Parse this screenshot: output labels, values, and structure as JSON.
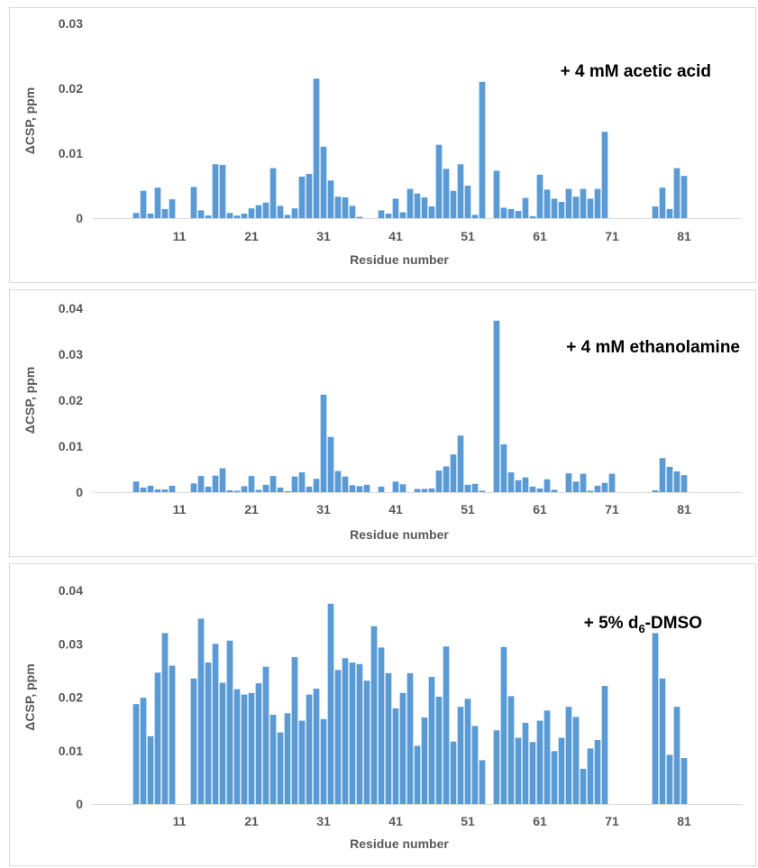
{
  "chart_data": [
    {
      "type": "bar",
      "annotation": "+ 4 mM acetic acid",
      "xlabel": "Residue number",
      "ylabel": "ΔCSP, ppm",
      "ylim": [
        0,
        0.03
      ],
      "yticks": [
        "0",
        "0.01",
        "0.02",
        "0.03"
      ],
      "xlim": [
        -1,
        89
      ],
      "xticks": [
        "11",
        "21",
        "31",
        "41",
        "51",
        "61",
        "71",
        "81"
      ],
      "grid": false,
      "x": [
        5,
        6,
        7,
        8,
        9,
        10,
        11,
        13,
        14,
        15,
        16,
        17,
        18,
        19,
        20,
        21,
        22,
        23,
        24,
        25,
        26,
        27,
        28,
        29,
        30,
        31,
        32,
        33,
        34,
        35,
        36,
        37,
        38,
        39,
        40,
        41,
        42,
        43,
        44,
        45,
        46,
        47,
        48,
        49,
        50,
        51,
        52,
        53,
        55,
        56,
        57,
        58,
        59,
        60,
        61,
        62,
        63,
        64,
        65,
        66,
        67,
        68,
        69,
        70,
        71,
        77,
        78,
        79,
        80,
        81
      ],
      "values": [
        0.0008,
        0.0042,
        0.0007,
        0.0047,
        0.0014,
        0.0029,
        0.0,
        0.0048,
        0.0012,
        0.0004,
        0.0083,
        0.0082,
        0.0008,
        0.0004,
        0.0007,
        0.0015,
        0.002,
        0.0024,
        0.0077,
        0.0019,
        0.0005,
        0.0015,
        0.0064,
        0.0068,
        0.0215,
        0.011,
        0.0058,
        0.0033,
        0.0032,
        0.0019,
        0.0002,
        0.0,
        0.0,
        0.0012,
        0.0007,
        0.003,
        0.0009,
        0.0045,
        0.0038,
        0.0032,
        0.0018,
        0.0113,
        0.0076,
        0.0042,
        0.0083,
        0.005,
        0.0005,
        0.021,
        0.0073,
        0.0016,
        0.0014,
        0.0011,
        0.0031,
        0.0003,
        0.0067,
        0.0044,
        0.003,
        0.0025,
        0.0045,
        0.0033,
        0.0045,
        0.003,
        0.0045,
        0.0133,
        0.0,
        0.0018,
        0.0047,
        0.0014,
        0.0077,
        0.0065
      ]
    },
    {
      "type": "bar",
      "annotation": "+ 4 mM ethanolamine",
      "xlabel": "Residue number",
      "ylabel": "ΔCSP, ppm",
      "ylim": [
        0,
        0.04
      ],
      "yticks": [
        "0",
        "0.01",
        "0.02",
        "0.03",
        "0.04"
      ],
      "xlim": [
        -1,
        89
      ],
      "xticks": [
        "11",
        "21",
        "31",
        "41",
        "51",
        "61",
        "71",
        "81"
      ],
      "grid": false,
      "x": [
        5,
        6,
        7,
        8,
        9,
        10,
        11,
        13,
        14,
        15,
        16,
        17,
        18,
        19,
        20,
        21,
        22,
        23,
        24,
        25,
        26,
        27,
        28,
        29,
        30,
        31,
        32,
        33,
        34,
        35,
        36,
        37,
        38,
        39,
        40,
        41,
        42,
        43,
        44,
        45,
        46,
        47,
        48,
        49,
        50,
        51,
        52,
        53,
        55,
        56,
        57,
        58,
        59,
        60,
        61,
        62,
        63,
        64,
        65,
        66,
        67,
        68,
        69,
        70,
        71,
        77,
        78,
        79,
        80,
        81
      ],
      "values": [
        0.0023,
        0.001,
        0.0014,
        0.0006,
        0.0006,
        0.0014,
        0.0,
        0.0019,
        0.0035,
        0.0012,
        0.0036,
        0.0052,
        0.0004,
        0.0003,
        0.0013,
        0.0035,
        0.0005,
        0.0016,
        0.0035,
        0.001,
        0.0002,
        0.0034,
        0.0043,
        0.0012,
        0.0029,
        0.0212,
        0.012,
        0.0046,
        0.0034,
        0.0015,
        0.0013,
        0.0016,
        0.0,
        0.0012,
        0.0,
        0.0023,
        0.0017,
        0.0,
        0.0007,
        0.0007,
        0.0008,
        0.0047,
        0.0056,
        0.0082,
        0.0123,
        0.0016,
        0.0018,
        0.0003,
        0.0373,
        0.0104,
        0.0043,
        0.0026,
        0.0032,
        0.0012,
        0.0008,
        0.0028,
        0.0005,
        0.0,
        0.0041,
        0.0023,
        0.004,
        0.0003,
        0.0014,
        0.002,
        0.004,
        0.0004,
        0.0074,
        0.0055,
        0.0045,
        0.0037
      ]
    },
    {
      "type": "bar",
      "annotation": "+ 5% d",
      "annotation_sub": "6",
      "annotation_tail": "-DMSO",
      "xlabel": "Residue number",
      "ylabel": "ΔCSP, ppm",
      "ylim": [
        0,
        0.04
      ],
      "yticks": [
        "0",
        "0.01",
        "0.02",
        "0.03",
        "0.04"
      ],
      "xlim": [
        -1,
        89
      ],
      "xticks": [
        "11",
        "21",
        "31",
        "41",
        "51",
        "61",
        "71",
        "81"
      ],
      "grid": false,
      "x": [
        5,
        6,
        7,
        8,
        9,
        10,
        11,
        13,
        14,
        15,
        16,
        17,
        18,
        19,
        20,
        21,
        22,
        23,
        24,
        25,
        26,
        27,
        28,
        29,
        30,
        31,
        32,
        33,
        34,
        35,
        36,
        37,
        38,
        39,
        40,
        41,
        42,
        43,
        44,
        45,
        46,
        47,
        48,
        49,
        50,
        51,
        52,
        53,
        55,
        56,
        57,
        58,
        59,
        60,
        61,
        62,
        63,
        64,
        65,
        66,
        67,
        68,
        69,
        70,
        71,
        77,
        78,
        79,
        80,
        81
      ],
      "values": [
        0.0187,
        0.0199,
        0.0127,
        0.0246,
        0.032,
        0.0259,
        0.0,
        0.0235,
        0.0347,
        0.0265,
        0.03,
        0.0227,
        0.0306,
        0.0215,
        0.0205,
        0.0208,
        0.0226,
        0.0257,
        0.0167,
        0.0134,
        0.017,
        0.0275,
        0.0156,
        0.0205,
        0.0216,
        0.0159,
        0.0375,
        0.0251,
        0.0273,
        0.0265,
        0.0262,
        0.0231,
        0.0333,
        0.0293,
        0.0245,
        0.0179,
        0.0208,
        0.0245,
        0.0109,
        0.0162,
        0.0238,
        0.0201,
        0.0295,
        0.0117,
        0.0182,
        0.0197,
        0.0146,
        0.0082,
        0.0138,
        0.0294,
        0.0202,
        0.0124,
        0.0152,
        0.0116,
        0.0156,
        0.0175,
        0.0099,
        0.0124,
        0.0182,
        0.0163,
        0.0066,
        0.0104,
        0.012,
        0.0221,
        0.0,
        0.032,
        0.0235,
        0.0092,
        0.0182,
        0.0086
      ]
    }
  ]
}
